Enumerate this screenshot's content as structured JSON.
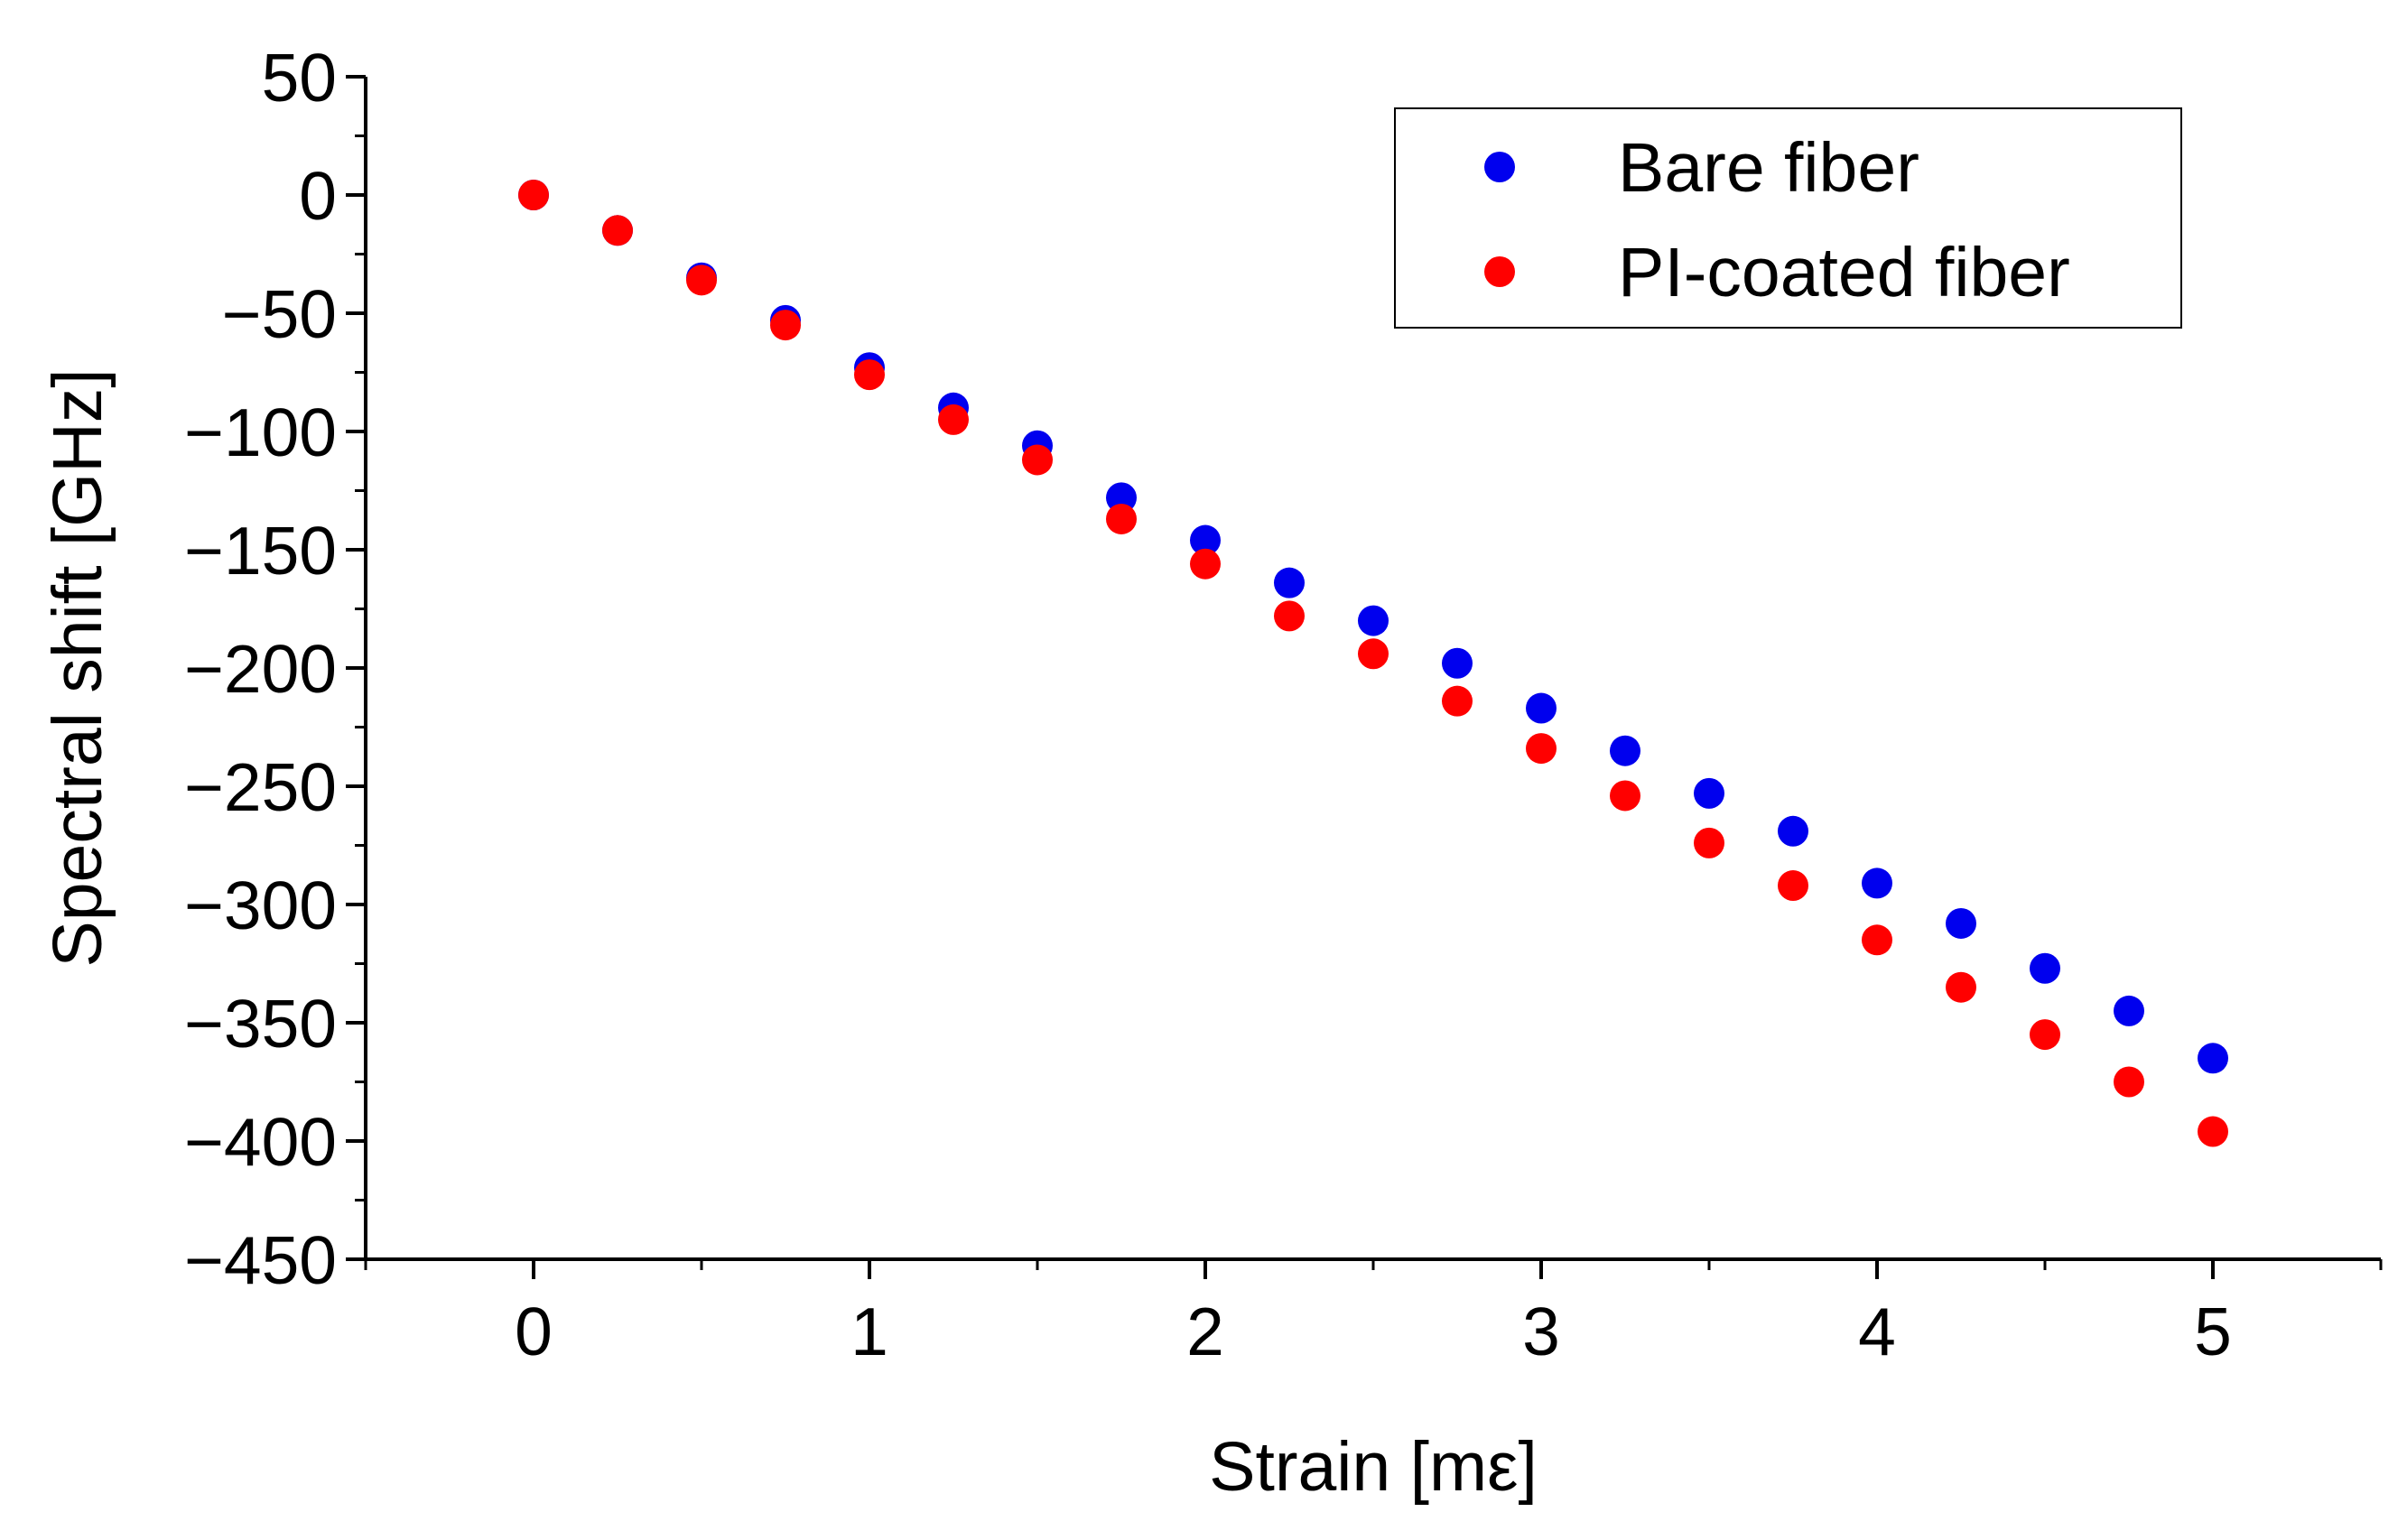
{
  "chart_data": {
    "type": "scatter",
    "title": "",
    "xlabel": "Strain [mε]",
    "ylabel": "Spectral shift [GHz]",
    "xlim": [
      -0.5,
      5.5
    ],
    "ylim": [
      -450,
      50
    ],
    "xticks": [
      0,
      1,
      2,
      3,
      4,
      5
    ],
    "xtick_labels": [
      "0",
      "1",
      "2",
      "3",
      "4",
      "5"
    ],
    "yticks": [
      50,
      0,
      -50,
      -100,
      -150,
      -200,
      -250,
      -300,
      -350,
      -400,
      -450
    ],
    "ytick_labels": [
      "50",
      "0",
      "−50",
      "−100",
      "−150",
      "−200",
      "−250",
      "−300",
      "−350",
      "−400",
      "−450"
    ],
    "legend_position": "top-right",
    "grid": false,
    "series": [
      {
        "name": "Bare fiber",
        "color": "#0000ee",
        "x": [
          0,
          0.25,
          0.5,
          0.75,
          1,
          1.25,
          1.5,
          1.75,
          2,
          2.25,
          2.5,
          2.75,
          3,
          3.25,
          3.5,
          3.75,
          4,
          4.25,
          4.5,
          4.75,
          5
        ],
        "y": [
          0,
          -15,
          -35,
          -53,
          -73,
          -90,
          -106,
          -128,
          -146,
          -164,
          -180,
          -198,
          -217,
          -235,
          -253,
          -269,
          -291,
          -308,
          -327,
          -345,
          -365
        ]
      },
      {
        "name": "PI-coated fiber",
        "color": "#ff0000",
        "x": [
          0,
          0.25,
          0.5,
          0.75,
          1,
          1.25,
          1.5,
          1.75,
          2,
          2.25,
          2.5,
          2.75,
          3,
          3.25,
          3.5,
          3.75,
          4,
          4.25,
          4.5,
          4.75,
          5
        ],
        "y": [
          0,
          -15,
          -36,
          -55,
          -76,
          -95,
          -112,
          -137,
          -156,
          -178,
          -194,
          -214,
          -234,
          -254,
          -274,
          -292,
          -315,
          -335,
          -355,
          -375,
          -396
        ]
      }
    ]
  }
}
